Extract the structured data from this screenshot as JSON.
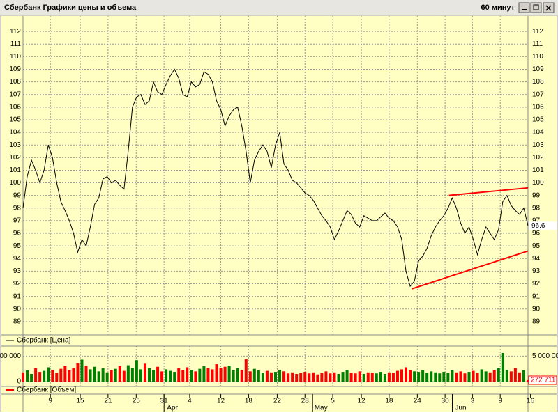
{
  "window": {
    "title": "Сбербанк Графики цены и объема",
    "interval": "60 минут"
  },
  "chart_data": [
    {
      "type": "line",
      "series": [
        {
          "name": "Сбербанк [Цена]",
          "color": "#000000",
          "values": [
            98,
            100.5,
            101.8,
            101,
            100,
            101,
            103,
            102,
            100,
            98.5,
            97.8,
            97,
            96,
            94.5,
            95.5,
            95,
            96.5,
            98.3,
            98.8,
            100.3,
            100.5,
            100,
            100.2,
            99.8,
            99.5,
            102.5,
            106,
            106.8,
            107,
            106.2,
            106.5,
            108,
            107.2,
            107,
            107.8,
            108.5,
            109,
            108.3,
            107,
            106.8,
            108,
            107.6,
            107.8,
            108.8,
            108.6,
            108,
            106.5,
            105.8,
            104.5,
            105.3,
            105.8,
            106,
            104.5,
            102.5,
            100,
            101.8,
            102.5,
            103,
            102.5,
            101.2,
            103,
            104,
            101.5,
            101,
            100.2,
            100,
            99.6,
            99.2,
            99,
            98.6,
            98,
            97.4,
            97,
            96.5,
            95.5,
            96.2,
            97,
            97.8,
            97.5,
            96.8,
            96.5,
            97.4,
            97.2,
            97,
            97,
            97.3,
            97.6,
            97.2,
            97,
            96.5,
            95.5,
            93,
            91.8,
            92.2,
            93.8,
            94.2,
            94.8,
            95.8,
            96.5,
            97,
            97.4,
            98,
            98.8,
            98,
            96.8,
            96,
            96.5,
            95.5,
            94.3,
            95.5,
            96.5,
            96,
            95.5,
            96.3,
            98.5,
            99,
            98.2,
            97.8,
            97.5,
            98,
            96.6
          ]
        }
      ],
      "ylim": [
        88,
        113
      ],
      "yticks": [
        89,
        90,
        91,
        92,
        93,
        94,
        95,
        96,
        97,
        98,
        99,
        100,
        101,
        102,
        103,
        104,
        105,
        106,
        107,
        108,
        109,
        110,
        111,
        112
      ],
      "xlim": [
        0,
        120
      ],
      "xticks": [
        {
          "value": 6.5,
          "label": "9"
        },
        {
          "value": 13.6,
          "label": "15"
        },
        {
          "value": 20.2,
          "label": "21"
        },
        {
          "value": 26.9,
          "label": "25"
        },
        {
          "value": 33.5,
          "label": "31"
        },
        {
          "value": 39.6,
          "label": "4"
        },
        {
          "value": 47,
          "label": "12"
        },
        {
          "value": 53.6,
          "label": "18"
        },
        {
          "value": 60.4,
          "label": "22"
        },
        {
          "value": 67,
          "label": "28"
        },
        {
          "value": 73.6,
          "label": "5"
        },
        {
          "value": 80.4,
          "label": "12"
        },
        {
          "value": 87,
          "label": "18"
        },
        {
          "value": 93.7,
          "label": "24"
        },
        {
          "value": 100.3,
          "label": "30"
        },
        {
          "value": 106.8,
          "label": "3"
        },
        {
          "value": 113.4,
          "label": "9"
        },
        {
          "value": 120.6,
          "label": "16"
        }
      ],
      "xticks_major": [
        {
          "value": 35.5,
          "label": "Apr"
        },
        {
          "value": 70.8,
          "label": "May"
        },
        {
          "value": 104,
          "label": "Jun"
        }
      ],
      "trendlines": [
        {
          "color": "#ff0000",
          "x": [
            101.2,
            120
          ],
          "y": [
            99,
            99.6
          ]
        },
        {
          "color": "#ff0000",
          "x": [
            92.4,
            120
          ],
          "y": [
            91.6,
            94.6
          ]
        }
      ],
      "grid": true
    },
    {
      "type": "bar",
      "series": [
        {
          "name": "Сбербанк [Объем]",
          "color": "#ff0000",
          "up_color": "#008000",
          "values": [
            1800000,
            2200000,
            1500000,
            2600000,
            1900000,
            2100000,
            2800000,
            2300000,
            1700000,
            2500000,
            3000000,
            2200000,
            2700000,
            3600000,
            4300000,
            3100000,
            2400000,
            2900000,
            2000000,
            2600000,
            1800000,
            2200000,
            2500000,
            3000000,
            2100000,
            3200000,
            2700000,
            4200000,
            2400000,
            3500000,
            2600000,
            2300000,
            2900000,
            2000000,
            2400000,
            2100000,
            1900000,
            2600000,
            2200000,
            2800000,
            2300000,
            2000000,
            2500000,
            3000000,
            2700000,
            2400000,
            3400000,
            2600000,
            2900000,
            3100000,
            2300000,
            2600000,
            2200000,
            4400000,
            2000000,
            2500000,
            2200000,
            1700000,
            2100000,
            1800000,
            1900000,
            2300000,
            2000000,
            1600000,
            1800000,
            1500000,
            1700000,
            1900000,
            1600000,
            1800000,
            1400000,
            1700000,
            2000000,
            1600000,
            1800000,
            1500000,
            1900000,
            2300000,
            1700000,
            1600000,
            2000000,
            1500000,
            1800000,
            1700000,
            1600000,
            1900000,
            1500000,
            1800000,
            1700000,
            2100000,
            2400000,
            2800000,
            2200000,
            2000000,
            1900000,
            2300000,
            1700000,
            2000000,
            1800000,
            1600000,
            1900000,
            1700000,
            2200000,
            1800000,
            2000000,
            1600000,
            1900000,
            2100000,
            1700000,
            2400000,
            2000000,
            1800000,
            2200000,
            2600000,
            5600000,
            2300000,
            2000000,
            2700000,
            1800000,
            2200000,
            272711
          ],
          "last_label": "272 711"
        }
      ],
      "ylim": [
        0,
        6000000
      ],
      "yticks": [
        0,
        {
          "value": 5000000,
          "label": "5 000 000"
        }
      ],
      "grid": true
    }
  ]
}
